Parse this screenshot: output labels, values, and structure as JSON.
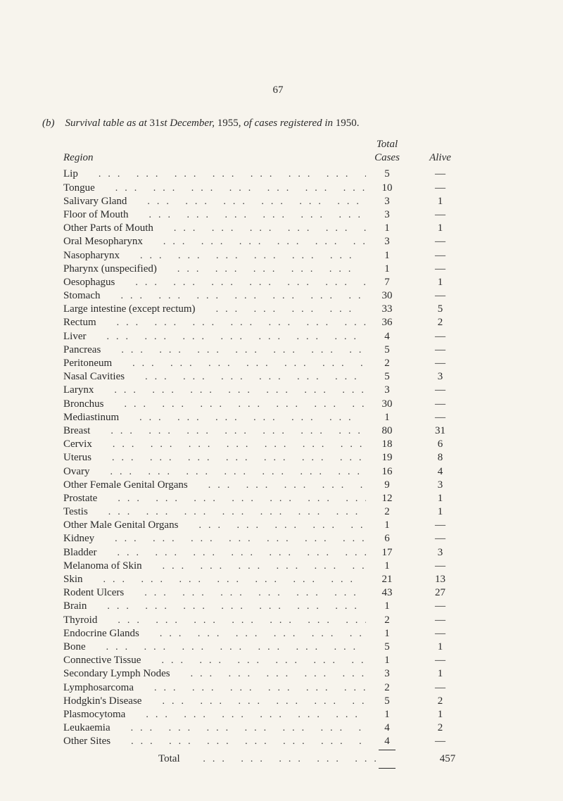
{
  "page_number": "67",
  "caption_prefix": "(b)",
  "caption_text_1": "Survival table as at ",
  "caption_plain": "31",
  "caption_text_2": "st December, ",
  "caption_year": "1955, ",
  "caption_text_3": "of cases registered in ",
  "caption_end": "1950.",
  "headers": {
    "region": "Region",
    "total": "Total",
    "cases": "Cases",
    "alive": "Alive"
  },
  "rows": [
    {
      "label": "Lip",
      "indent": 0,
      "cases": "5",
      "alive": "—"
    },
    {
      "label": "Tongue",
      "indent": 0,
      "cases": "10",
      "alive": "—"
    },
    {
      "label": "Salivary Gland",
      "indent": 0,
      "cases": "3",
      "alive": "1"
    },
    {
      "label": "Floor of Mouth",
      "indent": 0,
      "cases": "3",
      "alive": "—"
    },
    {
      "label": "Other Parts of Mouth",
      "indent": 0,
      "cases": "1",
      "alive": "1"
    },
    {
      "label": "Oral Mesopharynx",
      "indent": 0,
      "cases": "3",
      "alive": "—"
    },
    {
      "label": "Nasopharynx",
      "indent": 0,
      "cases": "1",
      "alive": "—"
    },
    {
      "label": "Pharynx (unspecified)",
      "indent": 0,
      "cases": "1",
      "alive": "—"
    },
    {
      "label": "Oesophagus",
      "indent": 0,
      "cases": "7",
      "alive": "1"
    },
    {
      "label": "Stomach",
      "indent": 0,
      "cases": "30",
      "alive": "—"
    },
    {
      "label": "Large intestine (except rectum)",
      "indent": 0,
      "cases": "33",
      "alive": "5"
    },
    {
      "label": "Rectum",
      "indent": 0,
      "cases": "36",
      "alive": "2"
    },
    {
      "label": "Liver",
      "indent": 0,
      "cases": "4",
      "alive": "—"
    },
    {
      "label": "Pancreas",
      "indent": 0,
      "cases": "5",
      "alive": "—"
    },
    {
      "label": "Peritoneum",
      "indent": 0,
      "cases": "2",
      "alive": "—"
    },
    {
      "label": "Nasal Cavities",
      "indent": 0,
      "cases": "5",
      "alive": "3"
    },
    {
      "label": "Larynx",
      "indent": 0,
      "cases": "3",
      "alive": "—"
    },
    {
      "label": "Bronchus",
      "indent": 0,
      "cases": "30",
      "alive": "—"
    },
    {
      "label": "Mediastinum",
      "indent": 0,
      "cases": "1",
      "alive": "—"
    },
    {
      "label": "Breast",
      "indent": 0,
      "cases": "80",
      "alive": "31"
    },
    {
      "label": "Cervix",
      "indent": 0,
      "cases": "18",
      "alive": "6"
    },
    {
      "label": "Uterus",
      "indent": 0,
      "cases": "19",
      "alive": "8"
    },
    {
      "label": "Ovary",
      "indent": 0,
      "cases": "16",
      "alive": "4"
    },
    {
      "label": "Other Female Genital Organs",
      "indent": 0,
      "cases": "9",
      "alive": "3"
    },
    {
      "label": "Prostate",
      "indent": 0,
      "cases": "12",
      "alive": "1"
    },
    {
      "label": "Testis",
      "indent": 0,
      "cases": "2",
      "alive": "1"
    },
    {
      "label": "Other Male Genital Organs",
      "indent": 0,
      "cases": "1",
      "alive": "—"
    },
    {
      "label": "Kidney",
      "indent": 0,
      "cases": "6",
      "alive": "—"
    },
    {
      "label": "Bladder",
      "indent": 0,
      "cases": "17",
      "alive": "3"
    },
    {
      "label": "Melanoma of Skin",
      "indent": 0,
      "cases": "1",
      "alive": "—"
    },
    {
      "label": "Skin",
      "indent": 0,
      "cases": "21",
      "alive": "13"
    },
    {
      "label": "Rodent Ulcers",
      "indent": 0,
      "cases": "43",
      "alive": "27"
    },
    {
      "label": "Brain",
      "indent": 0,
      "cases": "1",
      "alive": "—"
    },
    {
      "label": "Thyroid",
      "indent": 0,
      "cases": "2",
      "alive": "—"
    },
    {
      "label": "Endocrine Glands",
      "indent": 0,
      "cases": "1",
      "alive": "—"
    },
    {
      "label": "Bone",
      "indent": 0,
      "cases": "5",
      "alive": "1"
    },
    {
      "label": "Connective Tissue",
      "indent": 0,
      "cases": "1",
      "alive": "—"
    },
    {
      "label": "Secondary Lymph Nodes",
      "indent": 0,
      "cases": "3",
      "alive": "1"
    },
    {
      "label": "Lymphosarcoma",
      "indent": 0,
      "cases": "2",
      "alive": "—"
    },
    {
      "label": "Hodgkin's Disease",
      "indent": 0,
      "cases": "5",
      "alive": "2"
    },
    {
      "label": "Plasmocytoma",
      "indent": 0,
      "cases": "1",
      "alive": "1"
    },
    {
      "label": "Leukaemia",
      "indent": 0,
      "cases": "4",
      "alive": "2"
    },
    {
      "label": "Other Sites",
      "indent": 0,
      "cases": "4",
      "alive": "—"
    }
  ],
  "total": {
    "label": "Total",
    "cases": "457"
  }
}
